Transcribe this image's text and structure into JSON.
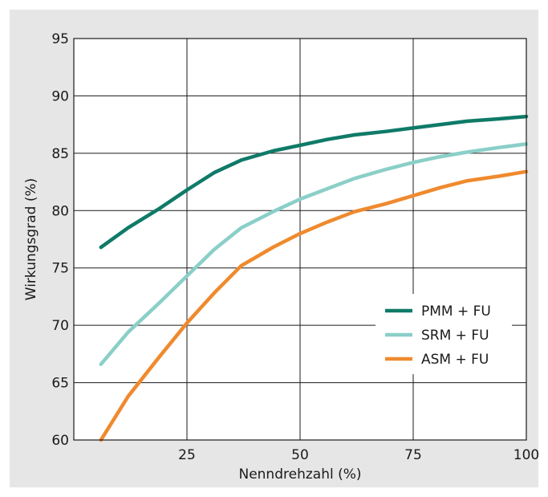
{
  "chart_data": {
    "type": "line",
    "xlabel": "Nenndrehzahl (%)",
    "ylabel": "Wirkungsgrad (%)",
    "xlim": [
      0,
      100
    ],
    "ylim": [
      60,
      95
    ],
    "xticks": [
      25,
      50,
      75,
      100
    ],
    "yticks": [
      60,
      65,
      70,
      75,
      80,
      85,
      90,
      95
    ],
    "grid": true,
    "legend_position": "right-center",
    "series": [
      {
        "name": "PMM + FU",
        "color": "#0f7a68",
        "x": [
          6,
          12,
          19,
          25,
          31,
          37,
          44,
          50,
          56,
          62,
          69,
          75,
          81,
          87,
          94,
          100
        ],
        "y": [
          76.8,
          78.5,
          80.2,
          81.8,
          83.3,
          84.4,
          85.2,
          85.7,
          86.2,
          86.6,
          86.9,
          87.2,
          87.5,
          87.8,
          88.0,
          88.2
        ]
      },
      {
        "name": "SRM + FU",
        "color": "#8acfc8",
        "x": [
          6,
          12,
          19,
          25,
          31,
          37,
          44,
          50,
          56,
          62,
          69,
          75,
          81,
          87,
          94,
          100
        ],
        "y": [
          66.6,
          69.4,
          72.0,
          74.3,
          76.6,
          78.5,
          79.9,
          81.0,
          81.9,
          82.8,
          83.6,
          84.2,
          84.7,
          85.1,
          85.5,
          85.8
        ]
      },
      {
        "name": "ASM + FU",
        "color": "#ef8a2e",
        "x": [
          6,
          12,
          19,
          25,
          31,
          37,
          44,
          50,
          56,
          62,
          69,
          75,
          81,
          87,
          94,
          100
        ],
        "y": [
          60.0,
          63.8,
          67.3,
          70.2,
          72.8,
          75.2,
          76.8,
          78.0,
          79.0,
          79.9,
          80.6,
          81.3,
          82.0,
          82.6,
          83.0,
          83.4
        ]
      }
    ]
  }
}
